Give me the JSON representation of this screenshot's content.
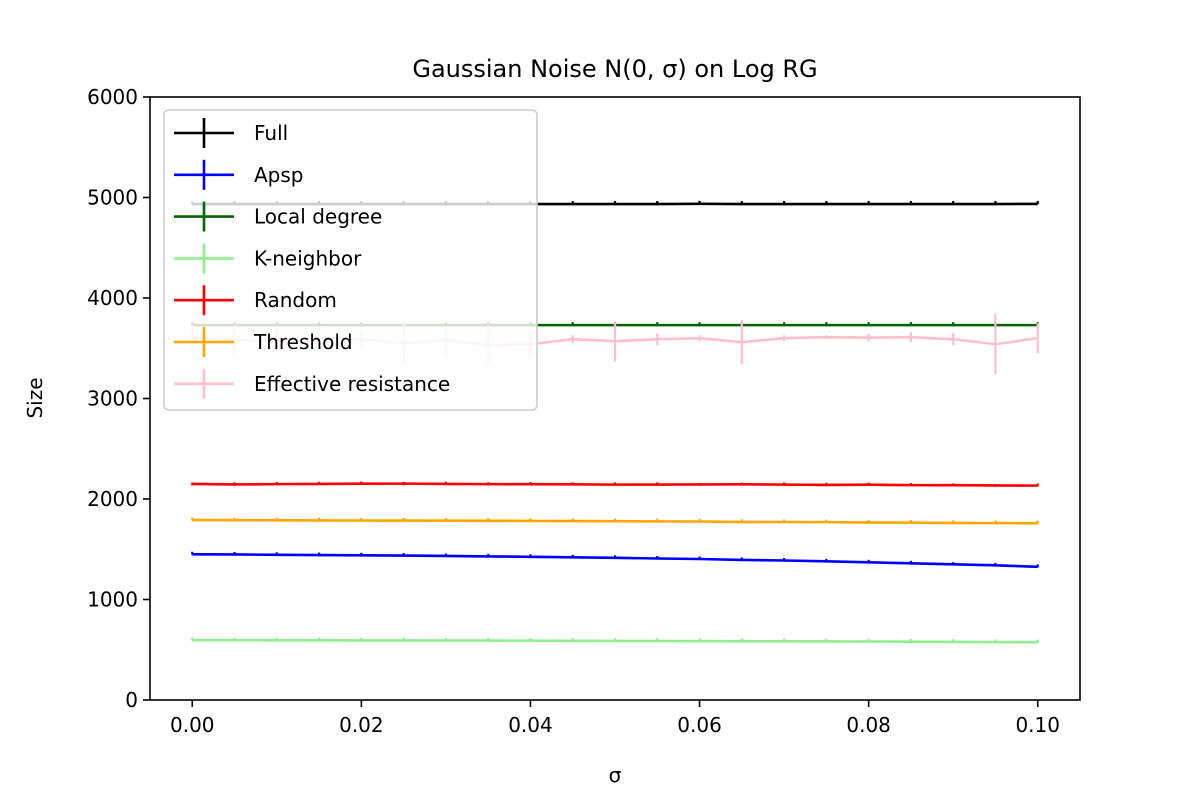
{
  "chart_data": {
    "type": "line",
    "title": "Gaussian Noise N(0, σ) on Log RG",
    "xlabel": "σ",
    "ylabel": "Size",
    "xlim": [
      -0.005,
      0.105
    ],
    "ylim": [
      0,
      6000
    ],
    "xticks": [
      0.0,
      0.02,
      0.04,
      0.06,
      0.08,
      0.1
    ],
    "xtick_labels": [
      "0.00",
      "0.02",
      "0.04",
      "0.06",
      "0.08",
      "0.10"
    ],
    "yticks": [
      0,
      1000,
      2000,
      3000,
      4000,
      5000,
      6000
    ],
    "ytick_labels": [
      "0",
      "1000",
      "2000",
      "3000",
      "4000",
      "5000",
      "6000"
    ],
    "grid": false,
    "legend_position": "top-left",
    "x": [
      0.0,
      0.005,
      0.01,
      0.015,
      0.02,
      0.025,
      0.03,
      0.035,
      0.04,
      0.045,
      0.05,
      0.055,
      0.06,
      0.065,
      0.07,
      0.075,
      0.08,
      0.085,
      0.09,
      0.095,
      0.1
    ],
    "series": [
      {
        "name": "Full",
        "color": "#000000",
        "values": [
          4935,
          4935,
          4935,
          4935,
          4935,
          4935,
          4935,
          4935,
          4935,
          4935,
          4935,
          4935,
          4937,
          4935,
          4935,
          4935,
          4935,
          4935,
          4935,
          4935,
          4936
        ],
        "errors": [
          0,
          0,
          0,
          0,
          0,
          0,
          0,
          0,
          0,
          0,
          0,
          0,
          0,
          0,
          0,
          0,
          0,
          0,
          0,
          0,
          0
        ]
      },
      {
        "name": "Apsp",
        "color": "#0000ff",
        "values": [
          1450,
          1448,
          1445,
          1442,
          1440,
          1437,
          1433,
          1429,
          1425,
          1420,
          1415,
          1408,
          1403,
          1394,
          1388,
          1380,
          1370,
          1360,
          1350,
          1340,
          1325
        ],
        "errors": [
          5,
          5,
          5,
          5,
          5,
          5,
          5,
          5,
          5,
          5,
          5,
          5,
          5,
          5,
          5,
          5,
          5,
          5,
          8,
          5,
          5
        ]
      },
      {
        "name": "Local degree",
        "color": "#006400",
        "values": [
          3730,
          3730,
          3730,
          3730,
          3730,
          3730,
          3730,
          3730,
          3730,
          3730,
          3730,
          3730,
          3730,
          3730,
          3730,
          3730,
          3730,
          3730,
          3730,
          3730,
          3730
        ],
        "errors": [
          0,
          0,
          0,
          0,
          0,
          0,
          0,
          0,
          0,
          0,
          0,
          0,
          0,
          0,
          0,
          0,
          0,
          0,
          0,
          0,
          0
        ]
      },
      {
        "name": "K-neighbor",
        "color": "#90ee90",
        "values": [
          595,
          595,
          594,
          594,
          593,
          593,
          592,
          591,
          590,
          589,
          588,
          587,
          586,
          585,
          584,
          583,
          582,
          580,
          578,
          576,
          574
        ],
        "errors": [
          3,
          3,
          3,
          3,
          3,
          3,
          3,
          3,
          3,
          3,
          3,
          3,
          3,
          3,
          3,
          3,
          3,
          3,
          3,
          3,
          3
        ]
      },
      {
        "name": "Random",
        "color": "#ff0000",
        "values": [
          2150,
          2145,
          2148,
          2150,
          2152,
          2153,
          2150,
          2148,
          2147,
          2146,
          2143,
          2144,
          2145,
          2146,
          2143,
          2140,
          2142,
          2138,
          2137,
          2135,
          2133
        ],
        "errors": [
          15,
          8,
          8,
          8,
          8,
          18,
          8,
          10,
          8,
          10,
          8,
          8,
          15,
          12,
          8,
          8,
          8,
          10,
          12,
          15,
          8
        ]
      },
      {
        "name": "Threshold",
        "color": "#ffa500",
        "values": [
          1790,
          1789,
          1788,
          1787,
          1786,
          1785,
          1784,
          1783,
          1782,
          1780,
          1779,
          1777,
          1776,
          1772,
          1771,
          1770,
          1766,
          1765,
          1762,
          1760,
          1758
        ],
        "errors": [
          4,
          4,
          4,
          4,
          4,
          4,
          4,
          4,
          4,
          4,
          4,
          4,
          4,
          4,
          4,
          4,
          4,
          4,
          4,
          4,
          4
        ]
      },
      {
        "name": "Effective resistance",
        "color": "#ffc0cb",
        "values": [
          3600,
          3580,
          3570,
          3610,
          3590,
          3550,
          3580,
          3530,
          3540,
          3590,
          3570,
          3590,
          3600,
          3560,
          3600,
          3610,
          3605,
          3610,
          3590,
          3540,
          3600
        ],
        "errors": [
          130,
          150,
          120,
          100,
          80,
          220,
          140,
          200,
          130,
          40,
          200,
          60,
          30,
          220,
          30,
          20,
          40,
          50,
          60,
          300,
          150
        ]
      }
    ]
  }
}
